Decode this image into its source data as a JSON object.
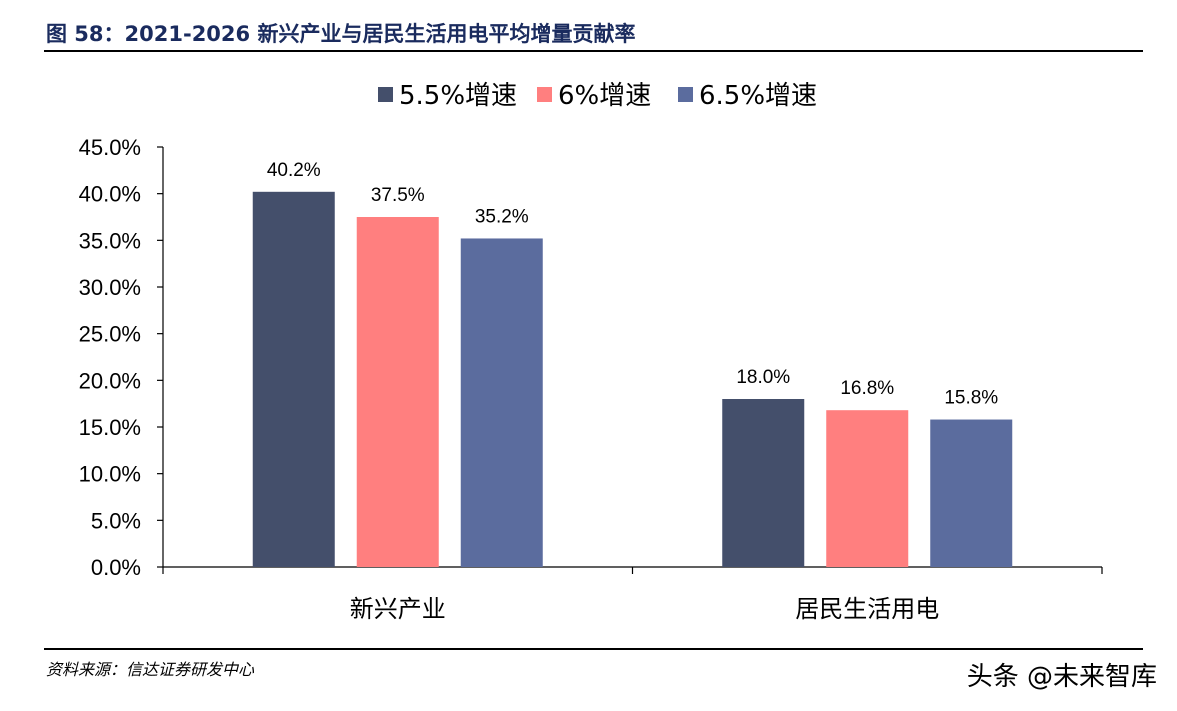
{
  "header": {
    "title": "图 58：2021-2026 新兴产业与居民生活用电平均增量贡献率"
  },
  "footer": {
    "source": "资料来源：信达证券研发中心",
    "watermark": "头条 @未来智库"
  },
  "chart_data": {
    "type": "bar",
    "title": "",
    "xlabel": "",
    "ylabel": "",
    "categories": [
      "新兴产业",
      "居民生活用电"
    ],
    "series": [
      {
        "name": "5.5%增速",
        "values": [
          40.2,
          18.0
        ],
        "color": "#444f6b"
      },
      {
        "name": "6%增速",
        "values": [
          37.5,
          16.8
        ],
        "color": "#ff7f7f"
      },
      {
        "name": "6.5%增速",
        "values": [
          35.2,
          15.8
        ],
        "color": "#5b6c9e"
      }
    ],
    "ylim": [
      0,
      45
    ],
    "yticks": [
      "0.0%",
      "5.0%",
      "10.0%",
      "15.0%",
      "20.0%",
      "25.0%",
      "30.0%",
      "35.0%",
      "40.0%",
      "45.0%"
    ],
    "data_labels": [
      [
        "40.2%",
        "18.0%"
      ],
      [
        "37.5%",
        "16.8%"
      ],
      [
        "35.2%",
        "15.8%"
      ]
    ],
    "grid": false,
    "legend_position": "top-center"
  }
}
